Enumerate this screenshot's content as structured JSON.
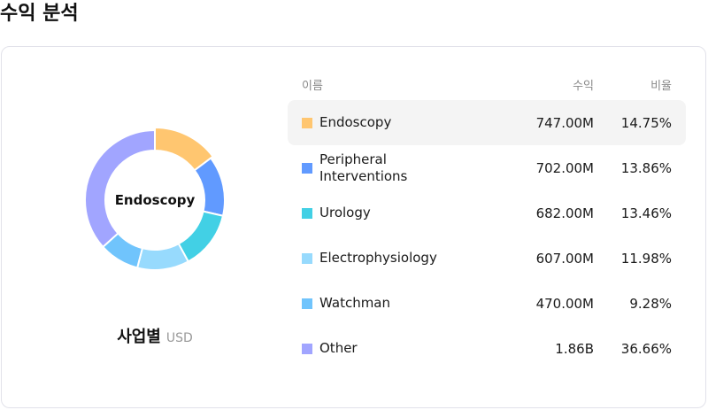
{
  "header": {
    "title": "수익 분석"
  },
  "donut": {
    "center_label": "Endoscopy"
  },
  "caption": {
    "main": "사업별",
    "unit": "USD"
  },
  "table": {
    "headers": {
      "name": "이름",
      "revenue": "수익",
      "share": "비율"
    },
    "rows": [
      {
        "name": "Endoscopy",
        "revenue": "747.00M",
        "share": "14.75%",
        "color": "#FFC670"
      },
      {
        "name": "Peripheral Interventions",
        "revenue": "702.00M",
        "share": "13.86%",
        "color": "#619AFF"
      },
      {
        "name": "Urology",
        "revenue": "682.00M",
        "share": "13.46%",
        "color": "#42D0E5"
      },
      {
        "name": "Electrophysiology",
        "revenue": "607.00M",
        "share": "11.98%",
        "color": "#97DAFD"
      },
      {
        "name": "Watchman",
        "revenue": "470.00M",
        "share": "9.28%",
        "color": "#70C4FC"
      },
      {
        "name": "Other",
        "revenue": "1.86B",
        "share": "36.66%",
        "color": "#A1A5FF"
      }
    ]
  },
  "chart_data": {
    "type": "pie",
    "title": "수익 분석",
    "subtitle": "사업별 USD",
    "categories": [
      "Endoscopy",
      "Peripheral Interventions",
      "Urology",
      "Electrophysiology",
      "Watchman",
      "Other"
    ],
    "values": [
      747.0,
      702.0,
      682.0,
      607.0,
      470.0,
      1860.0
    ],
    "value_unit": "M USD",
    "percentages": [
      14.75,
      13.86,
      13.46,
      11.98,
      9.28,
      36.66
    ],
    "colors": [
      "#FFC670",
      "#619AFF",
      "#42D0E5",
      "#97DAFD",
      "#70C4FC",
      "#A1A5FF"
    ],
    "highlighted": "Endoscopy",
    "donut": true,
    "legend_position": "right"
  }
}
